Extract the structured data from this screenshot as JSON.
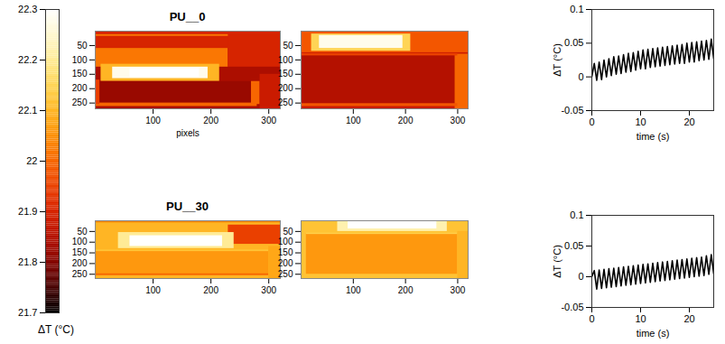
{
  "chart_data": [
    {
      "type": "colorbar",
      "label": "ΔT (°C)",
      "zlim": [
        21.7,
        22.3
      ],
      "zticks": [
        21.7,
        21.8,
        21.9,
        22,
        22.1,
        22.2,
        22.3
      ]
    },
    {
      "type": "heatmap",
      "title": "PU__0",
      "xlabel": "pixels",
      "xlim": [
        0,
        320
      ],
      "ylim": [
        0,
        270
      ],
      "xticks": [
        100,
        200,
        300
      ],
      "yticks": [
        50,
        100,
        150,
        200,
        250
      ],
      "cells": [
        {
          "x1": 0,
          "x2": 320,
          "y1": 0,
          "y2": 270,
          "value": 21.84
        },
        {
          "x1": 0,
          "x2": 320,
          "y1": 0,
          "y2": 60,
          "value": 21.9
        },
        {
          "x1": 0,
          "x2": 280,
          "y1": 12,
          "y2": 18,
          "value": 22.02
        },
        {
          "x1": 0,
          "x2": 230,
          "y1": 60,
          "y2": 125,
          "value": 22.02
        },
        {
          "x1": 230,
          "x2": 320,
          "y1": 0,
          "y2": 125,
          "value": 21.9
        },
        {
          "x1": 10,
          "x2": 215,
          "y1": 115,
          "y2": 175,
          "value": 22.1
        },
        {
          "x1": 30,
          "x2": 195,
          "y1": 125,
          "y2": 165,
          "value": 22.28
        },
        {
          "x1": 60,
          "x2": 180,
          "y1": 130,
          "y2": 160,
          "value": 22.3
        },
        {
          "x1": 0,
          "x2": 270,
          "y1": 175,
          "y2": 250,
          "value": 21.82
        },
        {
          "x1": 270,
          "x2": 285,
          "y1": 175,
          "y2": 255,
          "value": 22
        },
        {
          "x1": 0,
          "x2": 280,
          "y1": 250,
          "y2": 262,
          "value": 22
        },
        {
          "x1": 285,
          "x2": 320,
          "y1": 150,
          "y2": 270,
          "value": 21.88
        },
        {
          "x1": 0,
          "x2": 8,
          "y1": 170,
          "y2": 255,
          "value": 21.95
        }
      ]
    },
    {
      "type": "heatmap",
      "xlim": [
        0,
        320
      ],
      "ylim": [
        0,
        270
      ],
      "xticks": [
        100,
        200,
        300
      ],
      "yticks": [
        50,
        100,
        150,
        200,
        250
      ],
      "cells": [
        {
          "x1": 0,
          "x2": 320,
          "y1": 0,
          "y2": 270,
          "value": 21.88
        },
        {
          "x1": 0,
          "x2": 320,
          "y1": 0,
          "y2": 75,
          "value": 21.98
        },
        {
          "x1": 20,
          "x2": 210,
          "y1": 10,
          "y2": 70,
          "value": 22.15
        },
        {
          "x1": 35,
          "x2": 195,
          "y1": 15,
          "y2": 60,
          "value": 22.28
        },
        {
          "x1": 0,
          "x2": 300,
          "y1": 80,
          "y2": 255,
          "value": 21.85
        },
        {
          "x1": 295,
          "x2": 320,
          "y1": 80,
          "y2": 270,
          "value": 22
        },
        {
          "x1": 0,
          "x2": 300,
          "y1": 252,
          "y2": 262,
          "value": 21.98
        },
        {
          "x1": 0,
          "x2": 300,
          "y1": 78,
          "y2": 86,
          "value": 21.95
        }
      ]
    },
    {
      "type": "line",
      "xlabel": "time (s)",
      "ylabel": "ΔT (°C)",
      "color": "#000000",
      "xlim": [
        0,
        25
      ],
      "xticks": [
        0,
        10,
        20
      ],
      "ylim": [
        -0.05,
        0.1
      ],
      "yticks": [
        -0.05,
        0,
        0.05,
        0.1
      ],
      "x": [
        0,
        0.5,
        1,
        1.5,
        2,
        2.5,
        3,
        3.5,
        4,
        4.5,
        5,
        5.5,
        6,
        6.5,
        7,
        7.5,
        8,
        8.5,
        9,
        9.5,
        10,
        10.5,
        11,
        11.5,
        12,
        12.5,
        13,
        13.5,
        14,
        14.5,
        15,
        15.5,
        16,
        16.5,
        17,
        17.5,
        18,
        18.5,
        19,
        19.5,
        20,
        20.5,
        21,
        21.5,
        22,
        22.5,
        23,
        23.5,
        24,
        24.5,
        25
      ],
      "values": [
        0,
        0.02,
        -0.005,
        0.022,
        -0.004,
        0.025,
        0,
        0.027,
        0.002,
        0.03,
        0.004,
        0.031,
        0.005,
        0.033,
        0.007,
        0.035,
        0.008,
        0.036,
        0.01,
        0.038,
        0.012,
        0.04,
        0.012,
        0.041,
        0.014,
        0.042,
        0.015,
        0.043,
        0.016,
        0.044,
        0.017,
        0.045,
        0.018,
        0.046,
        0.019,
        0.047,
        0.02,
        0.048,
        0.02,
        0.05,
        0.022,
        0.051,
        0.022,
        0.052,
        0.024,
        0.053,
        0.025,
        0.054,
        0.026,
        0.056,
        0.027
      ]
    },
    {
      "type": "heatmap",
      "title": "PU__30",
      "xlim": [
        0,
        320
      ],
      "ylim": [
        0,
        270
      ],
      "xticks": [
        100,
        200,
        300
      ],
      "yticks": [
        50,
        100,
        150,
        200,
        250
      ],
      "cells": [
        {
          "x1": 0,
          "x2": 320,
          "y1": 0,
          "y2": 270,
          "value": 22.1
        },
        {
          "x1": 0,
          "x2": 320,
          "y1": 0,
          "y2": 10,
          "value": 22.04
        },
        {
          "x1": 230,
          "x2": 320,
          "y1": 20,
          "y2": 110,
          "value": 21.95
        },
        {
          "x1": 40,
          "x2": 240,
          "y1": 55,
          "y2": 130,
          "value": 22.2
        },
        {
          "x1": 60,
          "x2": 220,
          "y1": 70,
          "y2": 120,
          "value": 22.3
        },
        {
          "x1": 0,
          "x2": 300,
          "y1": 140,
          "y2": 250,
          "value": 22.06
        },
        {
          "x1": 0,
          "x2": 300,
          "y1": 136,
          "y2": 144,
          "value": 22.12
        },
        {
          "x1": 0,
          "x2": 300,
          "y1": 248,
          "y2": 256,
          "value": 22
        },
        {
          "x1": 300,
          "x2": 320,
          "y1": 120,
          "y2": 270,
          "value": 22.08
        }
      ]
    },
    {
      "type": "heatmap",
      "xlim": [
        0,
        320
      ],
      "ylim": [
        0,
        270
      ],
      "xticks": [
        100,
        200,
        300
      ],
      "yticks": [
        50,
        100,
        150,
        200,
        250
      ],
      "cells": [
        {
          "x1": 0,
          "x2": 320,
          "y1": 0,
          "y2": 270,
          "value": 22.12
        },
        {
          "x1": 70,
          "x2": 280,
          "y1": 0,
          "y2": 50,
          "value": 22.22
        },
        {
          "x1": 90,
          "x2": 260,
          "y1": 0,
          "y2": 38,
          "value": 22.3
        },
        {
          "x1": 10,
          "x2": 300,
          "y1": 60,
          "y2": 250,
          "value": 22.06
        },
        {
          "x1": 10,
          "x2": 300,
          "y1": 58,
          "y2": 64,
          "value": 22.14
        },
        {
          "x1": 300,
          "x2": 320,
          "y1": 50,
          "y2": 270,
          "value": 22.1
        }
      ]
    },
    {
      "type": "line",
      "xlabel": "time (s)",
      "ylabel": "ΔT (°C)",
      "color": "#000000",
      "xlim": [
        0,
        25
      ],
      "xticks": [
        0,
        10,
        20
      ],
      "ylim": [
        -0.05,
        0.1
      ],
      "yticks": [
        -0.05,
        0,
        0.05,
        0.1
      ],
      "x": [
        0,
        0.5,
        1,
        1.5,
        2,
        2.5,
        3,
        3.5,
        4,
        4.5,
        5,
        5.5,
        6,
        6.5,
        7,
        7.5,
        8,
        8.5,
        9,
        9.5,
        10,
        10.5,
        11,
        11.5,
        12,
        12.5,
        13,
        13.5,
        14,
        14.5,
        15,
        15.5,
        16,
        16.5,
        17,
        17.5,
        18,
        18.5,
        19,
        19.5,
        20,
        20.5,
        21,
        21.5,
        22,
        22.5,
        23,
        23.5,
        24,
        24.5,
        25
      ],
      "values": [
        0,
        0.01,
        -0.02,
        0.011,
        -0.019,
        0.012,
        -0.018,
        0.013,
        -0.017,
        0.014,
        -0.016,
        0.015,
        -0.015,
        0.016,
        -0.014,
        0.017,
        -0.013,
        0.018,
        -0.012,
        0.019,
        -0.011,
        0.02,
        -0.01,
        0.021,
        -0.009,
        0.022,
        -0.008,
        0.023,
        -0.007,
        0.024,
        -0.006,
        0.025,
        -0.005,
        0.026,
        -0.004,
        0.027,
        -0.003,
        0.028,
        -0.002,
        0.029,
        -0.001,
        0.03,
        0,
        0.031,
        0.001,
        0.032,
        0.002,
        0.034,
        0.004,
        0.036,
        0.005
      ]
    }
  ]
}
